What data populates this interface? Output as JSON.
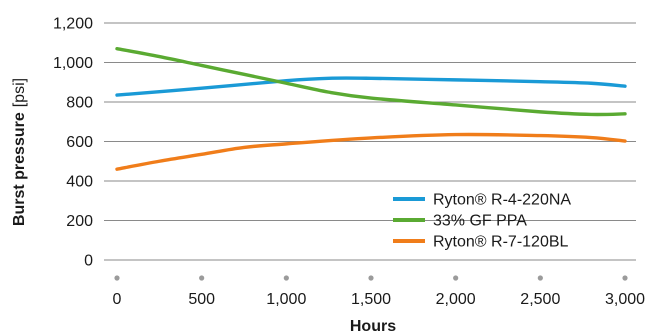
{
  "chart_data": {
    "type": "line",
    "title": "",
    "xlabel": "Hours",
    "ylabel": "Burst pressure",
    "ylabel_unit": "[psi]",
    "xlim": [
      0,
      3000
    ],
    "ylim": [
      0,
      1200
    ],
    "x_ticks": [
      "0",
      "500",
      "1,000",
      "1,500",
      "2,000",
      "2,500",
      "3,000"
    ],
    "x_tick_values": [
      0,
      500,
      1000,
      1500,
      2000,
      2500,
      3000
    ],
    "y_ticks": [
      "0",
      "200",
      "400",
      "600",
      "800",
      "1,000",
      "1,200"
    ],
    "y_tick_values": [
      0,
      200,
      400,
      600,
      800,
      1000,
      1200
    ],
    "grid": "horizontal",
    "legend_position": "bottom-right",
    "series": [
      {
        "name": "Ryton® R-4-220NA",
        "color": "#1a9ad6",
        "x": [
          0,
          500,
          1000,
          1250,
          1500,
          2000,
          2500,
          2800,
          3000
        ],
        "y": [
          835,
          870,
          908,
          920,
          920,
          912,
          903,
          895,
          880
        ]
      },
      {
        "name": "33% GF PPA",
        "color": "#5aaa32",
        "x": [
          0,
          250,
          500,
          750,
          1000,
          1250,
          1500,
          2000,
          2500,
          2800,
          3000
        ],
        "y": [
          1070,
          1030,
          985,
          940,
          895,
          850,
          820,
          785,
          750,
          737,
          740
        ]
      },
      {
        "name": "Ryton® R-7-120BL",
        "color": "#f07d1a",
        "x": [
          0,
          250,
          500,
          750,
          1000,
          1500,
          2000,
          2500,
          2800,
          3000
        ],
        "y": [
          460,
          500,
          535,
          570,
          588,
          618,
          635,
          630,
          620,
          602
        ]
      }
    ]
  }
}
